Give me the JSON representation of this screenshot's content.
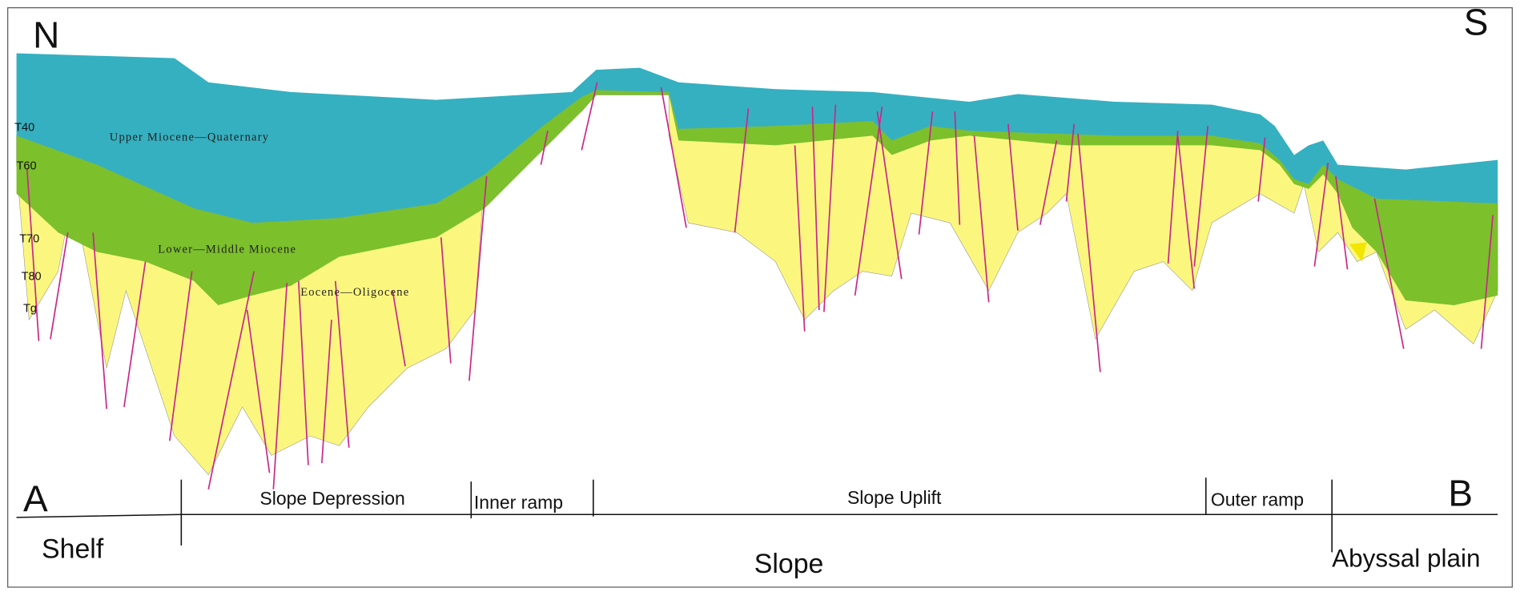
{
  "corners": {
    "north": "N",
    "south": "S",
    "start": "A",
    "end": "B"
  },
  "horizons": [
    "T40",
    "T60",
    "T70",
    "T80",
    "Tg"
  ],
  "units": [
    "Upper Miocene—Quaternary",
    "Lower—Middle  Miocene",
    "Eocene—Oligocene"
  ],
  "zones": [
    "Slope Depression",
    "Inner ramp",
    "Slope Uplift",
    "Outer ramp"
  ],
  "provinces": [
    "Shelf",
    "Slope",
    "Abyssal plain"
  ]
}
